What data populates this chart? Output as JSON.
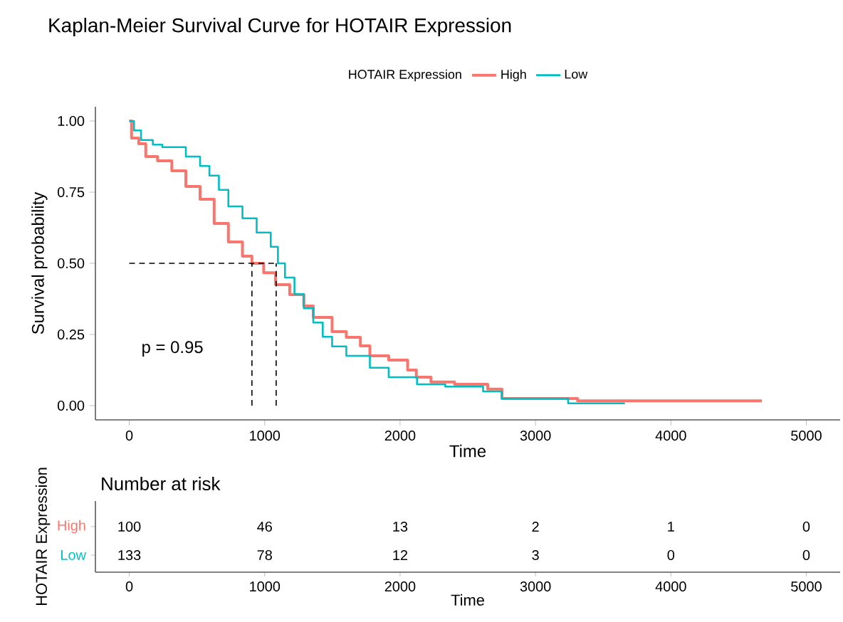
{
  "chart_data": [
    {
      "type": "step",
      "title": "Kaplan-Meier Survival Curve for HOTAIR Expression",
      "xlabel": "Time",
      "ylabel": "Survival probability",
      "legend_title": "HOTAIR Expression",
      "legend": "top",
      "xlim": [
        -250,
        5250
      ],
      "ylim": [
        -0.05,
        1.05
      ],
      "xticks": [
        0,
        1000,
        2000,
        3000,
        4000,
        5000
      ],
      "yticks": [
        {
          "value": 0,
          "label": "0.00"
        },
        {
          "value": 0.25,
          "label": "0.25"
        },
        {
          "value": 0.5,
          "label": "0.50"
        },
        {
          "value": 0.75,
          "label": "0.75"
        },
        {
          "value": 1,
          "label": "1.00"
        }
      ],
      "ref_lines": [
        {
          "axis": "y",
          "value": 0.5,
          "line_style": "dashed"
        },
        {
          "axis": "x",
          "value": 906,
          "line_style": "dashed"
        },
        {
          "axis": "x",
          "value": 1085,
          "line_style": "dashed"
        }
      ],
      "annotations": [
        "p = 0.95"
      ],
      "series": [
        {
          "name": "High",
          "color": "#f8766d",
          "x": [
            0,
            17,
            70,
            122,
            209,
            314,
            418,
            523,
            627,
            732,
            836,
            906,
            993,
            1080,
            1185,
            1289,
            1359,
            1463,
            1498,
            1603,
            1707,
            1777,
            1916,
            2056,
            2120,
            2228,
            2403,
            2647,
            2752,
            3311,
            4672
          ],
          "values": [
            1.0,
            0.94,
            0.92,
            0.875,
            0.86,
            0.825,
            0.77,
            0.725,
            0.64,
            0.575,
            0.525,
            0.5,
            0.467,
            0.425,
            0.39,
            0.35,
            0.31,
            0.31,
            0.26,
            0.24,
            0.21,
            0.175,
            0.16,
            0.125,
            0.1,
            0.083,
            0.075,
            0.058,
            0.025,
            0.017,
            0.017
          ]
        },
        {
          "name": "Low",
          "color": "#00bfc4",
          "x": [
            0,
            35,
            87,
            174,
            244,
            418,
            523,
            592,
            662,
            732,
            836,
            941,
            1045,
            1098,
            1150,
            1220,
            1289,
            1359,
            1429,
            1498,
            1603,
            1777,
            1916,
            2125,
            2334,
            2613,
            2752,
            3241,
            3660
          ],
          "values": [
            1.0,
            0.967,
            0.933,
            0.917,
            0.908,
            0.875,
            0.842,
            0.808,
            0.758,
            0.7,
            0.658,
            0.608,
            0.558,
            0.5,
            0.45,
            0.392,
            0.342,
            0.292,
            0.242,
            0.208,
            0.175,
            0.133,
            0.1,
            0.075,
            0.067,
            0.05,
            0.025,
            0.008,
            0.008
          ]
        }
      ]
    },
    {
      "type": "heatmap",
      "title": "Number at risk",
      "xlabel": "Time",
      "ylabel": "HOTAIR Expression",
      "categories": [
        "0",
        "1000",
        "2000",
        "3000",
        "4000",
        "5000"
      ],
      "y_categories": [
        "High",
        "Low"
      ],
      "cells": [
        [
          100,
          46,
          13,
          2,
          1,
          0
        ],
        [
          133,
          78,
          12,
          3,
          0,
          0
        ]
      ],
      "data_labels": true
    }
  ]
}
